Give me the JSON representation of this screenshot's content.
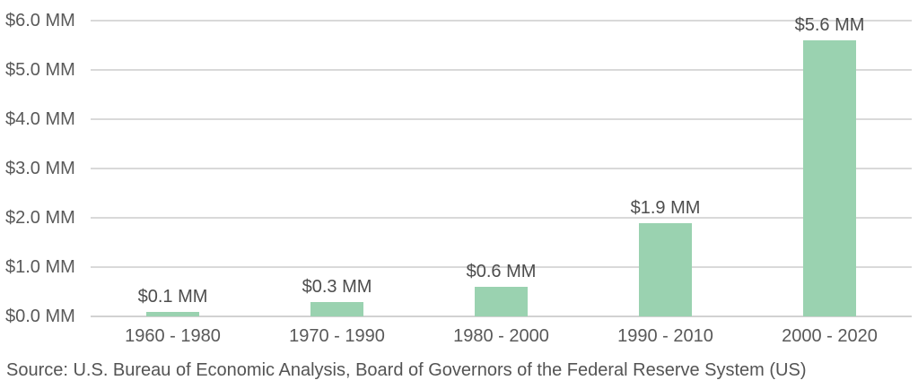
{
  "chart_data": {
    "type": "bar",
    "title": "",
    "categories": [
      "1960 - 1980",
      "1970 - 1990",
      "1980 - 2000",
      "1990 - 2010",
      "2000 - 2020"
    ],
    "values": [
      0.1,
      0.3,
      0.6,
      1.9,
      5.6
    ],
    "data_labels": [
      "$0.1 MM",
      "$0.3 MM",
      "$0.6 MM",
      "$1.9 MM",
      "$5.6 MM"
    ],
    "xlabel": "",
    "ylabel": "",
    "ylim": [
      0,
      6
    ],
    "ytick_step": 1,
    "ytick_labels": [
      "$0.0 MM",
      "$1.0 MM",
      "$2.0 MM",
      "$3.0 MM",
      "$4.0 MM",
      "$5.0 MM",
      "$6.0 MM"
    ],
    "grid": true,
    "legend": false,
    "bar_color": "#9ad2b0",
    "axis_text_color": "#595959",
    "data_label_color": "#4d4d4d",
    "gridline_color": "#d9d9d9"
  },
  "source": {
    "text": "Source: U.S. Bureau of Economic Analysis, Board of Governors of the Federal Reserve System (US)"
  }
}
